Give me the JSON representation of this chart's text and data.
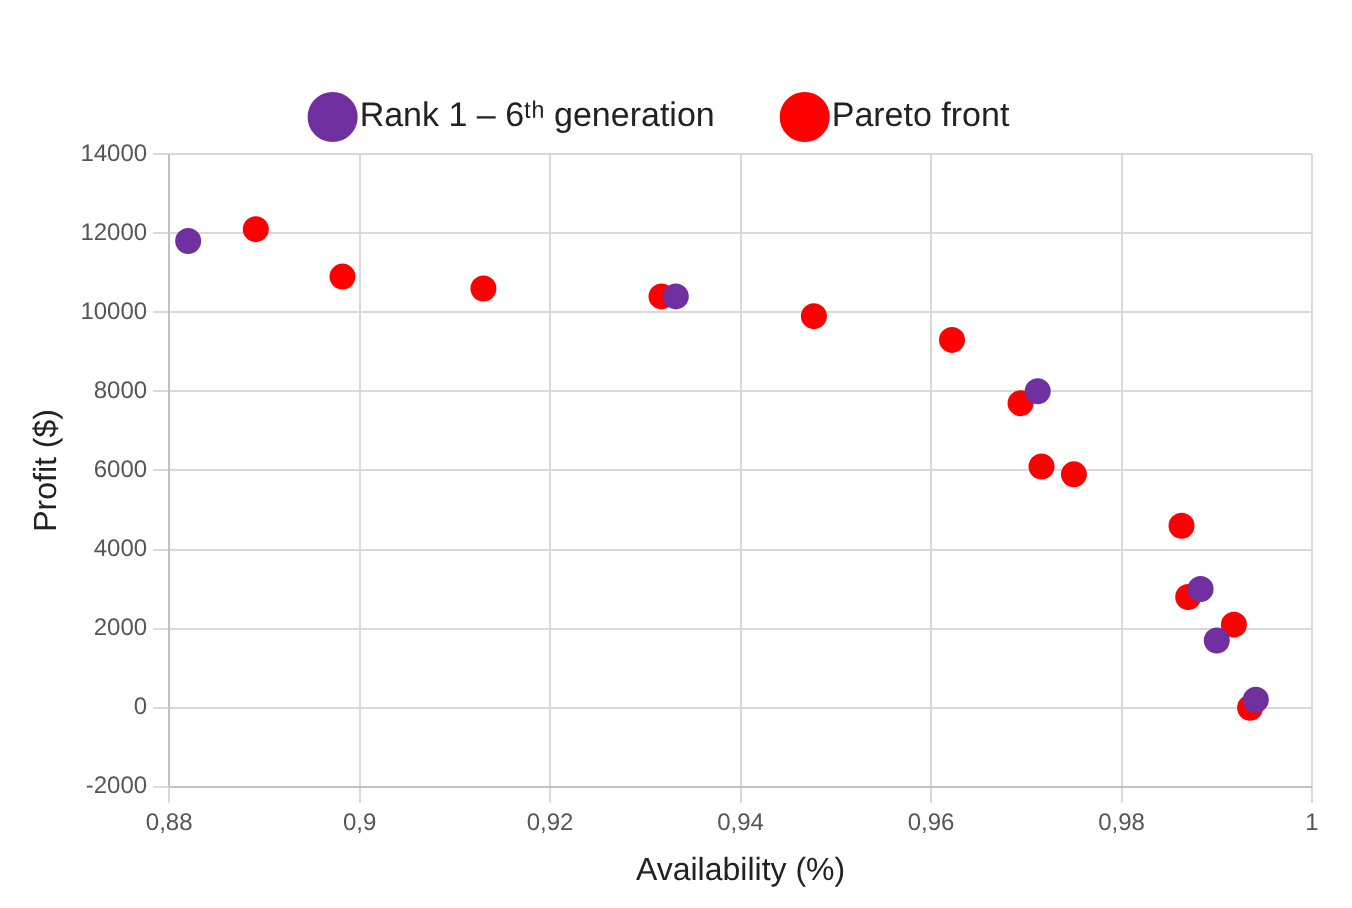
{
  "chart_data": {
    "type": "scatter",
    "xlabel": "Availability (%)",
    "ylabel": "Profit ($)",
    "xlim": [
      0.88,
      1
    ],
    "xticks": [
      {
        "value": 0.88,
        "label": "0,88"
      },
      {
        "value": 0.9,
        "label": "0,9"
      },
      {
        "value": 0.92,
        "label": "0,92"
      },
      {
        "value": 0.94,
        "label": "0,94"
      },
      {
        "value": 0.96,
        "label": "0,96"
      },
      {
        "value": 0.98,
        "label": "0,98"
      },
      1
    ],
    "ylim": [
      -2000,
      14000
    ],
    "yticks": [
      -2000,
      0,
      2000,
      4000,
      6000,
      8000,
      10000,
      12000,
      14000
    ],
    "grid": true,
    "legend": "top",
    "marker": "circle",
    "series": [
      {
        "name": "Rank 1 – 6ᵗʰ generation",
        "color": "#7030a0",
        "x": [
          0.882,
          0.9332,
          0.9712,
          0.9883,
          0.99,
          0.9941
        ],
        "values": [
          11800,
          10400,
          8000,
          3000,
          1700,
          200
        ]
      },
      {
        "name": "Pareto front",
        "color": "#ff0000",
        "x": [
          0.8891,
          0.8982,
          0.913,
          0.9317,
          0.9477,
          0.9622,
          0.9694,
          0.9716,
          0.975,
          0.9863,
          0.987,
          0.9918,
          0.9935
        ],
        "values": [
          12100,
          10900,
          10600,
          10400,
          9900,
          9300,
          7700,
          6100,
          5900,
          4600,
          2800,
          2100,
          0
        ]
      }
    ]
  }
}
